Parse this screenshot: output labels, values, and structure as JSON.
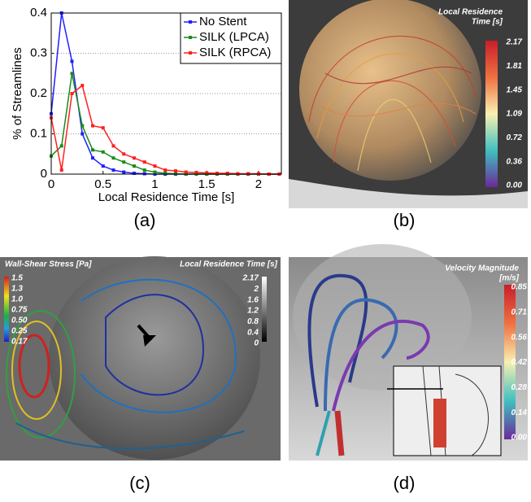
{
  "chart_data": {
    "type": "line",
    "xlabel": "Local Residence Time [s]",
    "ylabel": "% of Streamlines",
    "x": [
      0,
      0.1,
      0.2,
      0.3,
      0.4,
      0.5,
      0.6,
      0.7,
      0.8,
      0.9,
      1.0,
      1.1,
      1.2,
      1.3,
      1.4,
      1.5,
      1.6,
      1.7,
      1.8,
      1.9,
      2.0,
      2.1,
      2.2
    ],
    "series": [
      {
        "name": "No Stent",
        "color": "#1f1fff",
        "values": [
          0.15,
          0.4,
          0.28,
          0.1,
          0.04,
          0.02,
          0.01,
          0.005,
          0.002,
          0.001,
          0,
          0,
          0,
          0,
          0,
          0,
          0,
          0,
          0,
          0,
          0,
          0,
          0
        ]
      },
      {
        "name": "SILK (LPCA)",
        "color": "#1a8c1a",
        "values": [
          0.045,
          0.07,
          0.25,
          0.12,
          0.06,
          0.055,
          0.04,
          0.03,
          0.02,
          0.01,
          0.005,
          0.002,
          0.001,
          0,
          0,
          0,
          0,
          0,
          0,
          0,
          0,
          0,
          0
        ]
      },
      {
        "name": "SILK (RPCA)",
        "color": "#ff2020",
        "values": [
          0.14,
          0.01,
          0.2,
          0.22,
          0.12,
          0.115,
          0.07,
          0.05,
          0.04,
          0.03,
          0.02,
          0.01,
          0.008,
          0.005,
          0.004,
          0.003,
          0.002,
          0.002,
          0.001,
          0.001,
          0.001,
          0,
          0
        ]
      }
    ],
    "xlim": [
      0,
      2.22
    ],
    "xticks": [
      0,
      0.5,
      1,
      1.5,
      2
    ],
    "ylim": [
      0,
      0.4
    ],
    "yticks": [
      0,
      0.1,
      0.2,
      0.3,
      0.4
    ],
    "grid": true,
    "legend": "top-right"
  },
  "captions": [
    "(a)",
    "(b)",
    "(c)",
    "(d)"
  ],
  "panel_b": {
    "colorbar_title": [
      "Local Residence",
      "Time [s]"
    ],
    "colorbar_ticks": [
      "2.17",
      "1.81",
      "1.45",
      "1.09",
      "0.72",
      "0.36",
      "0.00"
    ]
  },
  "panel_c": {
    "left_colorbar_title": "Wall-Shear Stress [Pa]",
    "left_colorbar_ticks": [
      "1.5",
      "1.3",
      "1.0",
      "0.75",
      "0.50",
      "0.25",
      "0.17"
    ],
    "right_colorbar_title": "Local Residence Time [s]",
    "right_colorbar_ticks": [
      "2.17",
      "2",
      "1.6",
      "1.2",
      "0.8",
      "0.4",
      "0"
    ]
  },
  "panel_d": {
    "colorbar_title": [
      "Velocity Magnitude",
      "[m/s]"
    ],
    "colorbar_ticks": [
      "0.85",
      "0.71",
      "0.56",
      "0.42",
      "0.28",
      "0.14",
      "0.00"
    ]
  }
}
